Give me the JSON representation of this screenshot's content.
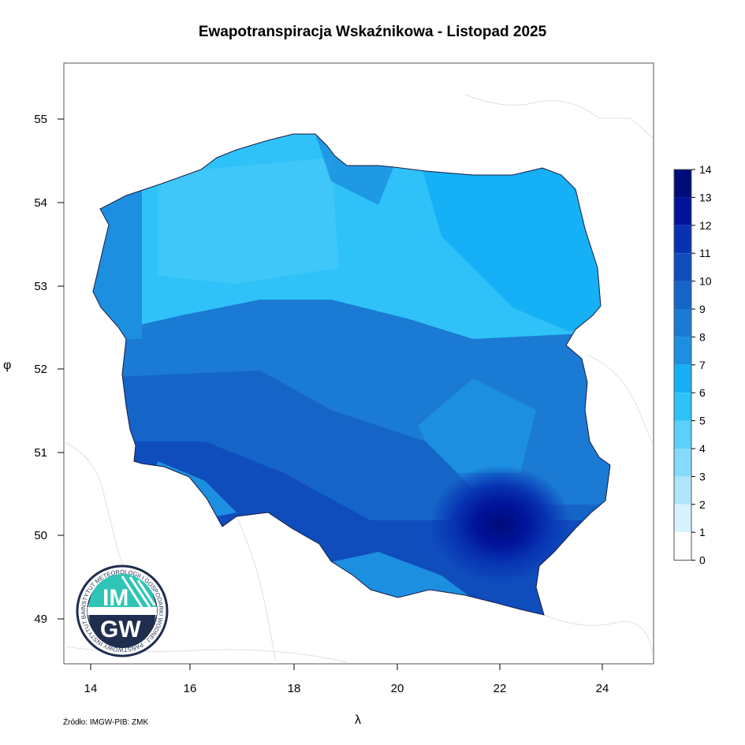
{
  "title": "Ewapotranspiracja Wskaźnikowa - Listopad 2025",
  "axes": {
    "xlabel": "λ",
    "ylabel": "φ",
    "x_ticks": [
      "14",
      "16",
      "18",
      "20",
      "22",
      "24"
    ],
    "y_ticks": [
      "55",
      "54",
      "53",
      "52",
      "51",
      "50",
      "49"
    ]
  },
  "legend": {
    "labels": [
      "14",
      "13",
      "12",
      "11",
      "10",
      "9",
      "8",
      "7",
      "6",
      "5",
      "4",
      "3",
      "2",
      "1",
      "0"
    ],
    "colors": [
      "#000c7a",
      "#00139a",
      "#0733b2",
      "#0f4dbd",
      "#1565c8",
      "#1b7ad3",
      "#1d8fe0",
      "#15b0f5",
      "#2fc2f8",
      "#5bd0fa",
      "#85dbfb",
      "#aee6fc",
      "#d6f2fe",
      "#ffffff"
    ]
  },
  "logo": {
    "text_top": "IM",
    "text_bottom": "GW",
    "ring_text": "INSTYTUT METEOROLOGII I GOSPODARKI WODNEJ · PAŃSTWOWY INSTYTUT BADAWCZY"
  },
  "source": "Źródło: IMGW-PIB: ZMK"
}
